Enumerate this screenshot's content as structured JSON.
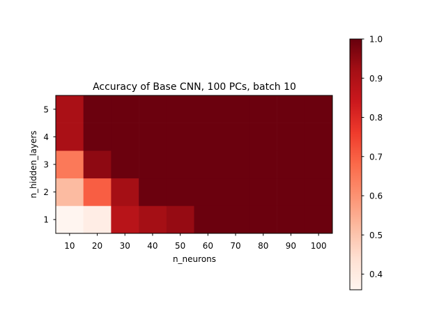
{
  "chart_data": {
    "type": "heatmap",
    "title": "Accuracy of Base CNN, 100 PCs, batch 10",
    "xlabel": "n_neurons",
    "ylabel": "n_hidden_layers",
    "x": [
      "10",
      "20",
      "30",
      "40",
      "50",
      "60",
      "70",
      "80",
      "90",
      "100"
    ],
    "y": [
      "1",
      "2",
      "3",
      "4",
      "5"
    ],
    "values": [
      [
        0.36,
        0.39,
        0.88,
        0.92,
        0.94,
        0.995,
        0.995,
        0.995,
        0.995,
        0.995
      ],
      [
        0.52,
        0.7,
        0.92,
        0.995,
        0.995,
        0.995,
        0.995,
        0.995,
        0.995,
        0.995
      ],
      [
        0.65,
        0.95,
        0.995,
        0.995,
        0.995,
        0.995,
        0.995,
        0.995,
        0.995,
        0.995
      ],
      [
        0.91,
        0.995,
        0.995,
        0.995,
        0.995,
        0.995,
        0.995,
        0.995,
        0.995,
        0.995
      ],
      [
        0.91,
        0.995,
        0.995,
        0.995,
        0.995,
        0.995,
        0.995,
        0.995,
        0.995,
        0.995
      ]
    ],
    "colormap": "Reds",
    "vmin": 0.36,
    "vmax": 1.0,
    "colorbar_ticks": [
      "0.4",
      "0.5",
      "0.6",
      "0.7",
      "0.8",
      "0.9",
      "1.0"
    ]
  }
}
